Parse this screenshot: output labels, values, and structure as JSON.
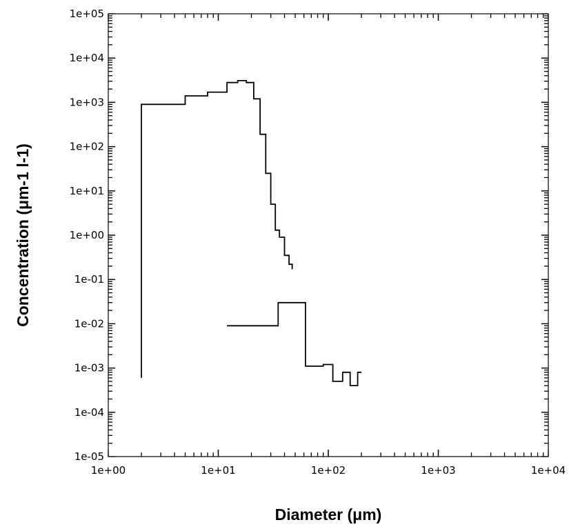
{
  "chart_data": {
    "type": "line",
    "step": true,
    "xlabel": "Diameter (μm)",
    "ylabel": "Concentration (μm-1 l-1)",
    "xscale": "log",
    "yscale": "log",
    "xlim": [
      1,
      10000
    ],
    "ylim": [
      1e-05,
      100000
    ],
    "x_ticks": [
      {
        "value": 1,
        "label": "1e+00"
      },
      {
        "value": 10,
        "label": "1e+01"
      },
      {
        "value": 100,
        "label": "1e+02"
      },
      {
        "value": 1000,
        "label": "1e+03"
      },
      {
        "value": 10000,
        "label": "1e+04"
      }
    ],
    "y_ticks": [
      {
        "value": 100000,
        "label": "1e+05"
      },
      {
        "value": 10000,
        "label": "1e+04"
      },
      {
        "value": 1000,
        "label": "1e+03"
      },
      {
        "value": 100,
        "label": "1e+02"
      },
      {
        "value": 10,
        "label": "1e+01"
      },
      {
        "value": 1,
        "label": "1e+00"
      },
      {
        "value": 0.1,
        "label": "1e-01"
      },
      {
        "value": 0.01,
        "label": "1e-02"
      },
      {
        "value": 0.001,
        "label": "1e-03"
      },
      {
        "value": 0.0001,
        "label": "1e-04"
      },
      {
        "value": 1e-05,
        "label": "1e-05"
      }
    ],
    "grid": false,
    "series": [
      {
        "color": "#000000",
        "points": [
          [
            2.0,
            0.0006
          ],
          [
            2.0,
            900
          ],
          [
            5.0,
            900
          ],
          [
            5.0,
            1400
          ],
          [
            8.0,
            1400
          ],
          [
            8.0,
            1700
          ],
          [
            12.0,
            1700
          ],
          [
            12.0,
            2800
          ],
          [
            15.0,
            2800
          ],
          [
            15.0,
            3100
          ],
          [
            18.0,
            3100
          ],
          [
            18.0,
            2800
          ],
          [
            21.0,
            2800
          ],
          [
            21.0,
            1200
          ],
          [
            24.0,
            1200
          ],
          [
            24.0,
            190
          ],
          [
            27.0,
            190
          ],
          [
            27.0,
            25
          ],
          [
            30.0,
            25
          ],
          [
            30.0,
            5
          ],
          [
            33.0,
            5
          ],
          [
            33.0,
            1.3
          ],
          [
            36.0,
            1.3
          ],
          [
            36.0,
            0.9
          ],
          [
            40.0,
            0.9
          ],
          [
            40.0,
            0.35
          ],
          [
            44.0,
            0.35
          ],
          [
            44.0,
            0.22
          ],
          [
            47.0,
            0.22
          ],
          [
            47.0,
            0.17
          ]
        ]
      },
      {
        "color": "#000000",
        "points": [
          [
            12.0,
            0.009
          ],
          [
            35.0,
            0.009
          ],
          [
            35.0,
            0.03
          ],
          [
            62.0,
            0.03
          ],
          [
            62.0,
            0.0011
          ],
          [
            90.0,
            0.0011
          ],
          [
            90.0,
            0.0012
          ],
          [
            110.0,
            0.0012
          ],
          [
            110.0,
            0.0005
          ],
          [
            135.0,
            0.0005
          ],
          [
            135.0,
            0.0008
          ],
          [
            158.0,
            0.0008
          ],
          [
            158.0,
            0.0004
          ],
          [
            185.0,
            0.0004
          ],
          [
            185.0,
            0.0008
          ],
          [
            200.0,
            0.0008
          ]
        ]
      }
    ]
  }
}
